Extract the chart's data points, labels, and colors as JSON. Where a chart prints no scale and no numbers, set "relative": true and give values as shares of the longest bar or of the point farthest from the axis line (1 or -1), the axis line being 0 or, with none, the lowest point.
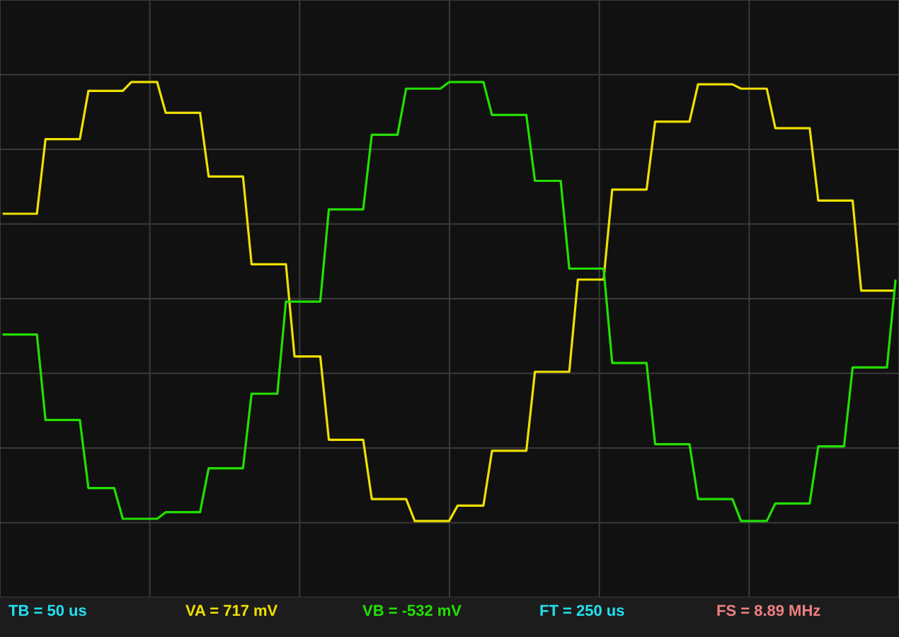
{
  "chart_data": {
    "type": "line",
    "relative": true,
    "grid": true,
    "categories": [
      null,
      null,
      null,
      null,
      null,
      null,
      null,
      null,
      null,
      null,
      null,
      null,
      null,
      null,
      null,
      null,
      null,
      null,
      null,
      null,
      null,
      null,
      null,
      null,
      null,
      null,
      null,
      null,
      null,
      null,
      null,
      null,
      null,
      null,
      null,
      null,
      null,
      null,
      null,
      null,
      null,
      null,
      null,
      null,
      null,
      null,
      null,
      null,
      null,
      null,
      null,
      null,
      null,
      null,
      null,
      null,
      null,
      null,
      null,
      null,
      null,
      null,
      null,
      null,
      null,
      null,
      null,
      null,
      null,
      null,
      null,
      null,
      null,
      null,
      null,
      null,
      null,
      null,
      null,
      null,
      null,
      null,
      null,
      null,
      null,
      null,
      null,
      null,
      null,
      null,
      null,
      null,
      null,
      null,
      null,
      null,
      null,
      null,
      null,
      null,
      null,
      null,
      null,
      null,
      null
    ],
    "series": [
      {
        "color": "#eee000",
        "values": [
          0.4,
          0.4,
          0.4,
          0.4,
          0.4,
          0.74,
          0.74,
          0.74,
          0.74,
          0.74,
          0.96,
          0.96,
          0.96,
          0.96,
          0.96,
          1.0,
          1.0,
          1.0,
          1.0,
          0.86,
          0.86,
          0.86,
          0.86,
          0.86,
          0.57,
          0.57,
          0.57,
          0.57,
          0.57,
          0.17,
          0.17,
          0.17,
          0.17,
          0.17,
          -0.25,
          -0.25,
          -0.25,
          -0.25,
          -0.63,
          -0.63,
          -0.63,
          -0.63,
          -0.63,
          -0.9,
          -0.9,
          -0.9,
          -0.9,
          -0.9,
          -1.0,
          -1.0,
          -1.0,
          -1.0,
          -1.0,
          -0.93,
          -0.93,
          -0.93,
          -0.93,
          -0.68,
          -0.68,
          -0.68,
          -0.68,
          -0.68,
          -0.32,
          -0.32,
          -0.32,
          -0.32,
          -0.32,
          0.1,
          0.1,
          0.1,
          0.1,
          0.51,
          0.51,
          0.51,
          0.51,
          0.51,
          0.82,
          0.82,
          0.82,
          0.82,
          0.82,
          0.99,
          0.99,
          0.99,
          0.99,
          0.99,
          0.97,
          0.97,
          0.97,
          0.97,
          0.79,
          0.79,
          0.79,
          0.79,
          0.79,
          0.46,
          0.46,
          0.46,
          0.46,
          0.46,
          0.05,
          0.05,
          0.05,
          0.05,
          0.05
        ]
      },
      {
        "color": "#22e000",
        "values": [
          -0.15,
          -0.15,
          -0.15,
          -0.15,
          -0.15,
          -0.54,
          -0.54,
          -0.54,
          -0.54,
          -0.54,
          -0.85,
          -0.85,
          -0.85,
          -0.85,
          -0.99,
          -0.99,
          -0.99,
          -0.99,
          -0.99,
          -0.96,
          -0.96,
          -0.96,
          -0.96,
          -0.96,
          -0.76,
          -0.76,
          -0.76,
          -0.76,
          -0.76,
          -0.42,
          -0.42,
          -0.42,
          -0.42,
          0,
          0,
          0,
          0,
          0,
          0.42,
          0.42,
          0.42,
          0.42,
          0.42,
          0.76,
          0.76,
          0.76,
          0.76,
          0.97,
          0.97,
          0.97,
          0.97,
          0.97,
          1.0,
          1.0,
          1.0,
          1.0,
          1.0,
          0.85,
          0.85,
          0.85,
          0.85,
          0.85,
          0.55,
          0.55,
          0.55,
          0.55,
          0.15,
          0.15,
          0.15,
          0.15,
          0.15,
          -0.28,
          -0.28,
          -0.28,
          -0.28,
          -0.28,
          -0.65,
          -0.65,
          -0.65,
          -0.65,
          -0.65,
          -0.9,
          -0.9,
          -0.9,
          -0.9,
          -0.9,
          -1.0,
          -1.0,
          -1.0,
          -1.0,
          -0.92,
          -0.92,
          -0.92,
          -0.92,
          -0.92,
          -0.66,
          -0.66,
          -0.66,
          -0.66,
          -0.3,
          -0.3,
          -0.3,
          -0.3,
          -0.3,
          0.1
        ]
      }
    ],
    "annotations": [
      "TB = 50 us",
      "VA = 717 mV",
      "VB = -532 mV",
      "FT = 250 us",
      "FS = 8.89 MHz"
    ]
  }
}
